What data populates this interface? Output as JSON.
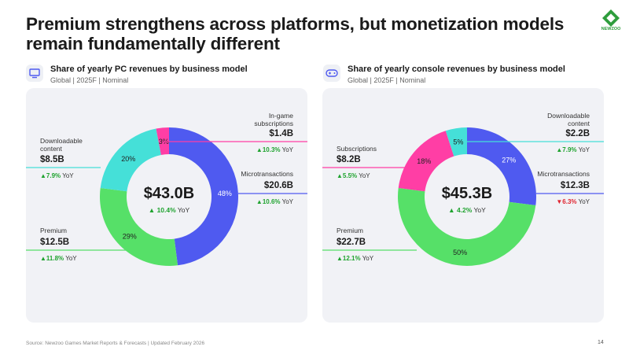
{
  "title": "Premium strengthens across platforms, but monetization models remain fundamentally different",
  "logo_text": "NEWZOO",
  "colors": {
    "microtransactions": "#4f5af0",
    "premium": "#56e068",
    "downloadable": "#45e0d8",
    "subscriptions": "#ff3ea5",
    "up": "#1fa32f",
    "down": "#e0232e",
    "ingame": "#ff3ea5"
  },
  "footer": "Source: Newzoo Games Market Reports & Forecasts | Updated February 2026",
  "page_number": "14",
  "chart_data": [
    {
      "type": "pie",
      "donut": true,
      "title": "Share of yearly PC revenues by business model",
      "subtitle": "Global | 2025F | Nominal",
      "icon": "pc-monitor-icon",
      "total": {
        "value": "$43.0B",
        "yoy": "10.4%",
        "yoy_dir": "up",
        "yoy_suffix": "YoY"
      },
      "slices": [
        {
          "name": "Microtransactions",
          "pct": 48,
          "pct_label": "48%",
          "value": "$20.6B",
          "yoy": "10.6%",
          "yoy_dir": "up",
          "color_key": "microtransactions"
        },
        {
          "name": "Premium",
          "pct": 29,
          "pct_label": "29%",
          "value": "$12.5B",
          "yoy": "11.8%",
          "yoy_dir": "up",
          "color_key": "premium"
        },
        {
          "name": "Downloadable content",
          "pct": 20,
          "pct_label": "20%",
          "value": "$8.5B",
          "yoy": "7.9%",
          "yoy_dir": "up",
          "color_key": "downloadable"
        },
        {
          "name": "In-game subscriptions",
          "pct": 3,
          "pct_label": "3%",
          "value": "$1.4B",
          "yoy": "10.3%",
          "yoy_dir": "up",
          "color_key": "subscriptions"
        }
      ]
    },
    {
      "type": "pie",
      "donut": true,
      "title": "Share of yearly console revenues by business model",
      "subtitle": "Global | 2025F | Nominal",
      "icon": "gamepad-icon",
      "total": {
        "value": "$45.3B",
        "yoy": "4.2%",
        "yoy_dir": "up",
        "yoy_suffix": "YoY"
      },
      "slices": [
        {
          "name": "Microtransactions",
          "pct": 27,
          "pct_label": "27%",
          "value": "$12.3B",
          "yoy": "6.3%",
          "yoy_dir": "down",
          "color_key": "microtransactions"
        },
        {
          "name": "Premium",
          "pct": 50,
          "pct_label": "50%",
          "value": "$22.7B",
          "yoy": "12.1%",
          "yoy_dir": "up",
          "color_key": "premium"
        },
        {
          "name": "Subscriptions",
          "pct": 18,
          "pct_label": "18%",
          "value": "$8.2B",
          "yoy": "5.5%",
          "yoy_dir": "up",
          "color_key": "subscriptions"
        },
        {
          "name": "Downloadable content",
          "pct": 5,
          "pct_label": "5%",
          "value": "$2.2B",
          "yoy": "7.9%",
          "yoy_dir": "up",
          "color_key": "downloadable"
        }
      ]
    }
  ]
}
